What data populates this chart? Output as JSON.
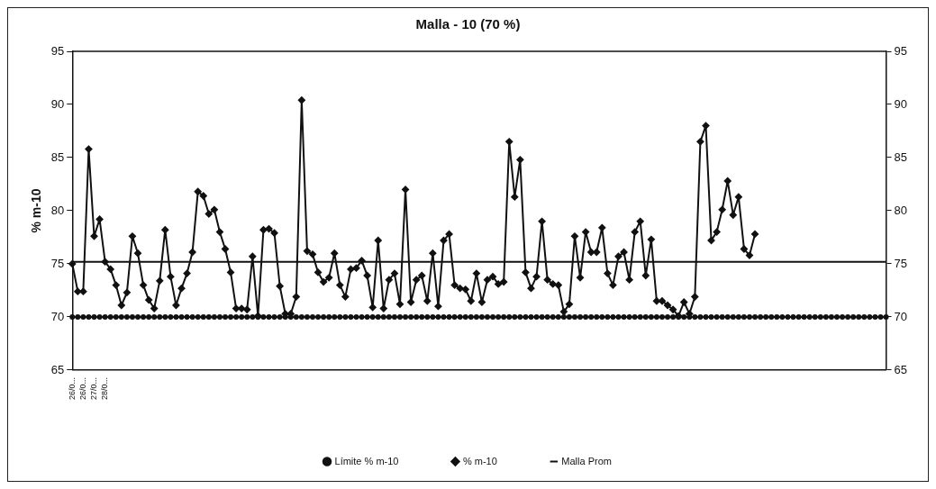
{
  "chart_data": {
    "type": "line",
    "title": "Malla - 10 (70 %)",
    "ylabel": "% m-10",
    "categories": [
      "26/0...",
      null,
      "26/0...",
      null,
      "27/0...",
      null,
      "28/0...",
      null,
      null,
      null,
      null,
      null,
      null,
      null,
      null,
      null,
      null,
      null,
      null,
      null,
      null,
      null,
      null,
      null,
      null,
      null,
      null,
      null,
      null,
      null,
      null,
      null,
      null,
      null,
      null,
      null,
      null,
      null,
      null,
      null,
      null,
      null,
      null,
      null,
      null,
      null,
      null,
      null,
      null,
      null,
      null,
      null,
      null,
      null,
      null,
      null,
      null,
      null,
      null,
      null,
      null,
      null,
      null,
      null,
      null,
      null,
      null,
      null,
      null,
      null,
      null,
      null,
      null,
      null,
      null,
      null,
      null,
      null,
      null,
      null,
      null,
      null,
      null,
      null,
      null,
      null,
      null,
      null,
      null,
      null,
      null,
      null,
      null,
      null,
      null,
      null,
      null,
      null,
      null,
      null,
      null,
      null,
      null,
      null,
      null,
      null,
      null,
      null,
      null,
      null,
      null,
      null,
      null,
      null,
      null,
      null,
      null,
      null,
      null,
      null,
      null,
      null,
      null,
      null,
      null,
      null,
      null,
      null,
      null,
      null,
      null,
      null,
      null,
      null,
      null,
      null,
      null,
      null,
      null,
      null,
      null,
      null,
      null,
      null,
      null,
      null,
      null,
      null,
      null,
      null
    ],
    "series": [
      {
        "name": "Límite % m-10",
        "color": "#111111",
        "marker": "circle",
        "values": [
          70,
          70,
          70,
          70,
          70,
          70,
          70,
          70,
          70,
          70,
          70,
          70,
          70,
          70,
          70,
          70,
          70,
          70,
          70,
          70,
          70,
          70,
          70,
          70,
          70,
          70,
          70,
          70,
          70,
          70,
          70,
          70,
          70,
          70,
          70,
          70,
          70,
          70,
          70,
          70,
          70,
          70,
          70,
          70,
          70,
          70,
          70,
          70,
          70,
          70,
          70,
          70,
          70,
          70,
          70,
          70,
          70,
          70,
          70,
          70,
          70,
          70,
          70,
          70,
          70,
          70,
          70,
          70,
          70,
          70,
          70,
          70,
          70,
          70,
          70,
          70,
          70,
          70,
          70,
          70,
          70,
          70,
          70,
          70,
          70,
          70,
          70,
          70,
          70,
          70,
          70,
          70,
          70,
          70,
          70,
          70,
          70,
          70,
          70,
          70,
          70,
          70,
          70,
          70,
          70,
          70,
          70,
          70,
          70,
          70,
          70,
          70,
          70,
          70,
          70,
          70,
          70,
          70,
          70,
          70,
          70,
          70,
          70,
          70,
          70,
          70,
          70,
          70,
          70,
          70,
          70,
          70,
          70,
          70,
          70,
          70,
          70,
          70,
          70,
          70,
          70,
          70,
          70,
          70,
          70,
          70,
          70,
          70,
          70,
          70
        ]
      },
      {
        "name": "% m-10",
        "color": "#111111",
        "marker": "diamond",
        "values": [
          75.0,
          72.4,
          72.4,
          85.8,
          77.6,
          79.2,
          75.2,
          74.5,
          73.0,
          71.1,
          72.3,
          77.6,
          76.0,
          73.0,
          71.6,
          70.8,
          73.4,
          78.2,
          73.8,
          71.1,
          72.7,
          74.1,
          76.1,
          81.8,
          81.4,
          79.7,
          80.1,
          78.0,
          76.4,
          74.2,
          70.8,
          70.8,
          70.7,
          75.7,
          70.1,
          78.2,
          78.3,
          77.9,
          72.9,
          70.3,
          70.3,
          71.9,
          90.4,
          76.2,
          75.9,
          74.2,
          73.3,
          73.7,
          76.0,
          73.0,
          71.9,
          74.5,
          74.6,
          75.3,
          73.9,
          70.9,
          77.2,
          70.8,
          73.5,
          74.1,
          71.2,
          82.0,
          71.4,
          73.5,
          73.9,
          71.5,
          76.0,
          71.0,
          77.2,
          77.8,
          73.0,
          72.7,
          72.6,
          71.5,
          74.1,
          71.4,
          73.5,
          73.8,
          73.1,
          73.3,
          86.5,
          81.3,
          84.8,
          74.2,
          72.7,
          73.8,
          79.0,
          73.5,
          73.1,
          73.0,
          70.5,
          71.2,
          77.6,
          73.7,
          78.0,
          76.1,
          76.1,
          78.4,
          74.1,
          73.0,
          75.7,
          76.1,
          73.5,
          78.0,
          79.0,
          73.9,
          77.3,
          71.5,
          71.5,
          71.1,
          70.7,
          70.1,
          71.4,
          70.3,
          71.9,
          86.5,
          88.0,
          77.2,
          78.0,
          80.1,
          82.8,
          79.6,
          81.3,
          76.4,
          75.8,
          77.8,
          null,
          null,
          null,
          null,
          null,
          null,
          null,
          null,
          null,
          null,
          null,
          null,
          null,
          null,
          null,
          null,
          null,
          null,
          null,
          null,
          null,
          null,
          null,
          null
        ]
      },
      {
        "name": "Malla Prom",
        "color": "#111111",
        "marker": "none",
        "values": [
          75.2,
          75.2,
          75.2,
          75.2,
          75.2,
          75.2,
          75.2,
          75.2,
          75.2,
          75.2,
          75.2,
          75.2,
          75.2,
          75.2,
          75.2,
          75.2,
          75.2,
          75.2,
          75.2,
          75.2,
          75.2,
          75.2,
          75.2,
          75.2,
          75.2,
          75.2,
          75.2,
          75.2,
          75.2,
          75.2,
          75.2,
          75.2,
          75.2,
          75.2,
          75.2,
          75.2,
          75.2,
          75.2,
          75.2,
          75.2,
          75.2,
          75.2,
          75.2,
          75.2,
          75.2,
          75.2,
          75.2,
          75.2,
          75.2,
          75.2,
          75.2,
          75.2,
          75.2,
          75.2,
          75.2,
          75.2,
          75.2,
          75.2,
          75.2,
          75.2,
          75.2,
          75.2,
          75.2,
          75.2,
          75.2,
          75.2,
          75.2,
          75.2,
          75.2,
          75.2,
          75.2,
          75.2,
          75.2,
          75.2,
          75.2,
          75.2,
          75.2,
          75.2,
          75.2,
          75.2,
          75.2,
          75.2,
          75.2,
          75.2,
          75.2,
          75.2,
          75.2,
          75.2,
          75.2,
          75.2,
          75.2,
          75.2,
          75.2,
          75.2,
          75.2,
          75.2,
          75.2,
          75.2,
          75.2,
          75.2,
          75.2,
          75.2,
          75.2,
          75.2,
          75.2,
          75.2,
          75.2,
          75.2,
          75.2,
          75.2,
          75.2,
          75.2,
          75.2,
          75.2,
          75.2,
          75.2,
          75.2,
          75.2,
          75.2,
          75.2,
          75.2,
          75.2,
          75.2,
          75.2,
          75.2,
          75.2,
          75.2,
          75.2,
          75.2,
          75.2,
          75.2,
          75.2,
          75.2,
          75.2,
          75.2,
          75.2,
          75.2,
          75.2,
          75.2,
          75.2,
          75.2,
          75.2,
          75.2,
          75.2,
          75.2,
          75.2,
          75.2,
          75.2,
          75.2,
          75.2
        ]
      }
    ],
    "ylim": [
      65,
      95
    ],
    "yticks": [
      65,
      70,
      75,
      80,
      85,
      90,
      95
    ],
    "y2lim": [
      65,
      95
    ],
    "y2ticks": [
      65,
      70,
      75,
      80,
      85,
      90,
      95
    ],
    "grid": false,
    "legend": "bottom"
  }
}
